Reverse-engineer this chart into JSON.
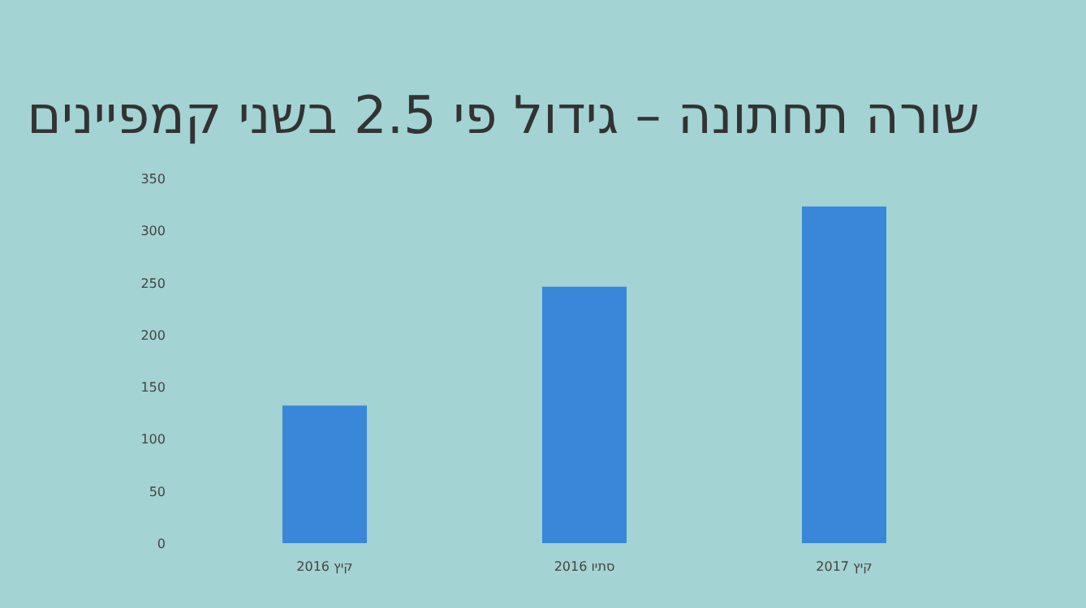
{
  "chart_data": {
    "type": "bar",
    "title": "שורה תחתונה – גידול פי 2.5 בשני קמפיינים",
    "categories": [
      "קיץ 2016",
      "סתיו 2016",
      "קיץ 2017"
    ],
    "values": [
      132,
      246,
      323
    ],
    "color": "#3a86d8",
    "ylim": [
      0,
      350
    ],
    "yticks": [
      0,
      50,
      100,
      150,
      200,
      250,
      300,
      350
    ]
  }
}
